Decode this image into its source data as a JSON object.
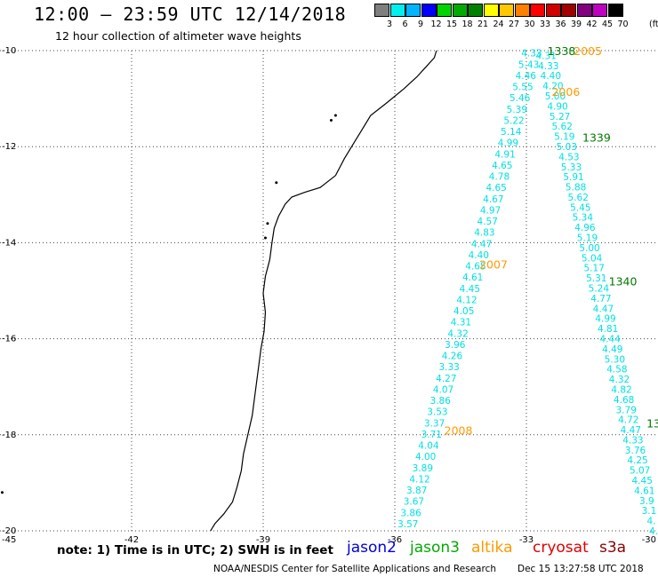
{
  "header": {
    "title": "12:00 – 23:59 UTC 12/14/2018",
    "subtitle": "12 hour collection of altimeter wave heights"
  },
  "color_scale": {
    "unit": "(ft)",
    "bins": [
      {
        "label": "3",
        "color": "#7f7f7f"
      },
      {
        "label": "6",
        "color": "#00f0f0"
      },
      {
        "label": "9",
        "color": "#00b4ff"
      },
      {
        "label": "12",
        "color": "#0000ff"
      },
      {
        "label": "15",
        "color": "#00d400"
      },
      {
        "label": "18",
        "color": "#00aa00"
      },
      {
        "label": "21",
        "color": "#008000"
      },
      {
        "label": "24",
        "color": "#ffff00"
      },
      {
        "label": "27",
        "color": "#ffc800"
      },
      {
        "label": "30",
        "color": "#ff8000"
      },
      {
        "label": "33",
        "color": "#ff0000"
      },
      {
        "label": "36",
        "color": "#d00000"
      },
      {
        "label": "39",
        "color": "#a00000"
      },
      {
        "label": "42",
        "color": "#800080"
      },
      {
        "label": "45",
        "color": "#c000c0"
      },
      {
        "label": "70",
        "color": "#000000"
      }
    ]
  },
  "map": {
    "lon_ticks": [
      "-45",
      "-42",
      "-39",
      "-36",
      "-33",
      "-30"
    ],
    "lat_ticks": [
      "-10",
      "-12",
      "-14",
      "-16",
      "-18",
      "-20"
    ],
    "lon_range": [
      -45,
      -30
    ],
    "lat_range": [
      -20,
      -10
    ]
  },
  "tracks": {
    "color": "#00e0e0",
    "track_a": {
      "values": [
        "4.33",
        "5.43",
        "4.46",
        "5.55",
        "5.46",
        "5.39",
        "5.22",
        "5.14",
        "4.99",
        "4.91",
        "4.65",
        "4.78",
        "4.65",
        "4.67",
        "4.97",
        "4.57",
        "4.83",
        "4.47",
        "4.40",
        "4.65",
        "4.61",
        "4.45",
        "4.12",
        "4.05",
        "4.31",
        "4.32",
        "3.96",
        "4.26",
        "3.33",
        "4.27",
        "4.07",
        "3.86",
        "3.53",
        "3.37",
        "3.71",
        "4.04",
        "4.00",
        "3.89",
        "4.12",
        "3.87",
        "3.67",
        "3.86",
        "3.57"
      ],
      "start_lon": -32.88,
      "start_lat": -10.05,
      "end_lon": -35.7,
      "end_lat": -19.85
    },
    "track_b": {
      "values": [
        "4.31",
        "4.33",
        "4.40",
        "4.20",
        "5.00",
        "4.90",
        "5.27",
        "5.62",
        "5.19",
        "5.03",
        "4.53",
        "5.33",
        "5.91",
        "5.88",
        "5.62",
        "5.45",
        "5.34",
        "4.96",
        "5.19",
        "5.00",
        "5.04",
        "5.17",
        "5.31",
        "5.24",
        "4.77",
        "4.47",
        "4.99",
        "4.81",
        "4.44",
        "4.49",
        "5.30",
        "4.58",
        "4.32",
        "4.82",
        "4.68",
        "3.79",
        "4.72",
        "4.47",
        "4.33",
        "3.76",
        "4.25",
        "5.07",
        "4.45",
        "4.61",
        "3.9",
        "3.1",
        "4.",
        "4."
      ],
      "start_lon": -32.55,
      "start_lat": -10.1,
      "end_lon": -30.1,
      "end_lat": -20.0
    }
  },
  "time_labels": [
    {
      "text": "1338",
      "lon": -32.2,
      "lat": -10.0,
      "color": "#007800"
    },
    {
      "text": "2005",
      "lon": -31.6,
      "lat": -10.0,
      "color": "#ff9900"
    },
    {
      "text": "2006",
      "lon": -32.1,
      "lat": -10.85,
      "color": "#ff9900"
    },
    {
      "text": "1339",
      "lon": -31.4,
      "lat": -11.8,
      "color": "#007800"
    },
    {
      "text": "2007",
      "lon": -33.75,
      "lat": -14.45,
      "color": "#ff9900"
    },
    {
      "text": "1340",
      "lon": -30.8,
      "lat": -14.8,
      "color": "#007800"
    },
    {
      "text": "2008",
      "lon": -34.55,
      "lat": -17.9,
      "color": "#ff9900"
    },
    {
      "text": "13",
      "lon": -30.1,
      "lat": -17.75,
      "color": "#007800"
    }
  ],
  "footer": {
    "note": "note: 1) Time is in UTC; 2) SWH is in feet",
    "satellites": [
      {
        "name": "jason2",
        "color": "#0000dd"
      },
      {
        "name": "jason3",
        "color": "#00aa00"
      },
      {
        "name": "altika",
        "color": "#ff9900"
      },
      {
        "name": "cryosat",
        "color": "#dd0000"
      },
      {
        "name": "s3a",
        "color": "#880000"
      }
    ],
    "credit": "NOAA/NESDIS Center for Satellite Applications and Research",
    "timestamp": "Dec 15 13:27:58 UTC 2018"
  }
}
